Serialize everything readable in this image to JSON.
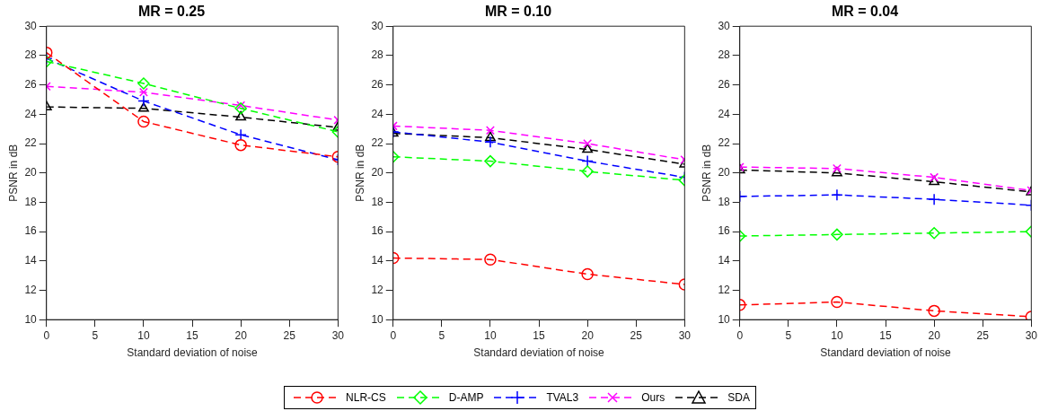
{
  "chart_data": [
    {
      "type": "line",
      "title": "MR = 0.25",
      "xlabel": "Standard deviation of noise",
      "ylabel": "PSNR in dB",
      "x": [
        0,
        10,
        20,
        30
      ],
      "xlim": [
        0,
        30
      ],
      "xticks": [
        0,
        5,
        10,
        15,
        20,
        25,
        30
      ],
      "ylim": [
        10,
        30
      ],
      "yticks": [
        10,
        12,
        14,
        16,
        18,
        20,
        22,
        24,
        26,
        28,
        30
      ],
      "grid": false,
      "legend": "bottom",
      "line_style": "dashed",
      "series": [
        {
          "name": "NLR-CS",
          "color": "#ff0000",
          "marker": "circle",
          "values": [
            28.2,
            23.5,
            21.9,
            21.1
          ]
        },
        {
          "name": "D-AMP",
          "color": "#00ff00",
          "marker": "diamond",
          "values": [
            27.6,
            26.1,
            24.4,
            22.8
          ]
        },
        {
          "name": "TVAL3",
          "color": "#0000ff",
          "marker": "cross",
          "values": [
            27.8,
            24.9,
            22.6,
            20.9
          ]
        },
        {
          "name": "Ours",
          "color": "#ff00ff",
          "marker": "cross",
          "values": [
            25.9,
            25.5,
            24.6,
            23.6
          ]
        },
        {
          "name": "SDA",
          "color": "#000000",
          "marker": "triangle",
          "values": [
            24.5,
            24.4,
            23.8,
            23.1
          ]
        }
      ]
    },
    {
      "type": "line",
      "title": "MR = 0.10",
      "xlabel": "Standard deviation of noise",
      "ylabel": "PSNR in dB",
      "x": [
        0,
        10,
        20,
        30
      ],
      "xlim": [
        0,
        30
      ],
      "xticks": [
        0,
        5,
        10,
        15,
        20,
        25,
        30
      ],
      "ylim": [
        10,
        30
      ],
      "yticks": [
        10,
        12,
        14,
        16,
        18,
        20,
        22,
        24,
        26,
        28,
        30
      ],
      "grid": false,
      "line_style": "dashed",
      "series": [
        {
          "color": "#ff0000",
          "marker": "circle",
          "values": [
            14.2,
            14.1,
            13.1,
            12.4
          ]
        },
        {
          "color": "#00ff00",
          "marker": "diamond",
          "values": [
            21.1,
            20.8,
            20.1,
            19.5
          ]
        },
        {
          "color": "#0000ff",
          "marker": "cross",
          "values": [
            22.8,
            22.1,
            20.8,
            19.7
          ]
        },
        {
          "color": "#ff00ff",
          "marker": "cross",
          "values": [
            23.2,
            22.9,
            22.0,
            20.9
          ]
        },
        {
          "color": "#000000",
          "marker": "triangle",
          "values": [
            22.7,
            22.4,
            21.6,
            20.6
          ]
        }
      ]
    },
    {
      "type": "line",
      "title": "MR = 0.04",
      "xlabel": "Standard deviation of noise",
      "ylabel": "PSNR in dB",
      "x": [
        0,
        10,
        20,
        30
      ],
      "xlim": [
        0,
        30
      ],
      "xticks": [
        0,
        5,
        10,
        15,
        20,
        25,
        30
      ],
      "ylim": [
        10,
        30
      ],
      "yticks": [
        10,
        12,
        14,
        16,
        18,
        20,
        22,
        24,
        26,
        28,
        30
      ],
      "grid": false,
      "line_style": "dashed",
      "series": [
        {
          "color": "#ff0000",
          "marker": "circle",
          "values": [
            11.0,
            11.2,
            10.6,
            10.2
          ]
        },
        {
          "color": "#00ff00",
          "marker": "diamond",
          "values": [
            15.7,
            15.8,
            15.9,
            16.0
          ]
        },
        {
          "color": "#0000ff",
          "marker": "cross",
          "values": [
            18.4,
            18.5,
            18.2,
            17.8
          ]
        },
        {
          "color": "#ff00ff",
          "marker": "cross",
          "values": [
            20.4,
            20.3,
            19.7,
            18.8
          ]
        },
        {
          "color": "#000000",
          "marker": "triangle",
          "values": [
            20.2,
            20.0,
            19.4,
            18.7
          ]
        }
      ]
    }
  ]
}
